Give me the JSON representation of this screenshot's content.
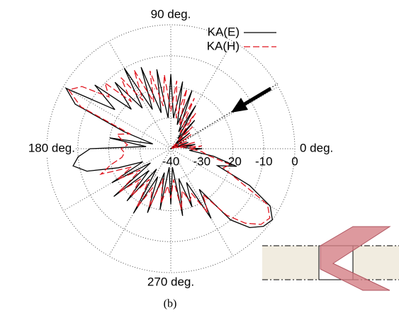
{
  "chart_data": {
    "type": "polar",
    "caption": "(b)",
    "rlim": [
      -40,
      0
    ],
    "rticks": [
      -40,
      -30,
      -20,
      -10,
      0
    ],
    "thetaticks": [
      {
        "value": 0,
        "label": "0 deg."
      },
      {
        "value": 30,
        "label": null
      },
      {
        "value": 60,
        "label": null
      },
      {
        "value": 90,
        "label": "90 deg."
      },
      {
        "value": 120,
        "label": null
      },
      {
        "value": 150,
        "label": null
      },
      {
        "value": 180,
        "label": "180 deg."
      },
      {
        "value": 210,
        "label": null
      },
      {
        "value": 240,
        "label": null
      },
      {
        "value": 270,
        "label": "270 deg."
      },
      {
        "value": 300,
        "label": null
      },
      {
        "value": 330,
        "label": null
      }
    ],
    "grid": true,
    "legend": "upper right",
    "theta": [
      0,
      5,
      10,
      15,
      20,
      25,
      30,
      35,
      40,
      45,
      50,
      55,
      60,
      65,
      70,
      75,
      80,
      85,
      90,
      95,
      100,
      105,
      110,
      115,
      120,
      125,
      130,
      135,
      140,
      145,
      150,
      155,
      160,
      165,
      170,
      175,
      180,
      185,
      190,
      195,
      200,
      205,
      210,
      215,
      220,
      225,
      230,
      235,
      240,
      245,
      250,
      255,
      260,
      265,
      270,
      275,
      280,
      285,
      290,
      295,
      300,
      305,
      310,
      315,
      320,
      325,
      330,
      335,
      340,
      345,
      350,
      355
    ],
    "series": [
      {
        "name": "KA(E)",
        "color": "#000000",
        "dash": "solid",
        "values": [
          -30,
          -36,
          -32,
          -38,
          -34,
          -40,
          -36,
          -40,
          -32,
          -38,
          -28,
          -36,
          -24,
          -34,
          -20,
          -32,
          -18,
          -30,
          -16,
          -30,
          -14,
          -28,
          -12,
          -26,
          -10,
          -24,
          -12,
          -22,
          -8,
          -18,
          -1,
          -6,
          -24,
          -34,
          -20,
          -32,
          -14,
          -10,
          -8,
          -12,
          -22,
          -30,
          -18,
          -32,
          -16,
          -30,
          -18,
          -32,
          -16,
          -30,
          -18,
          -32,
          -20,
          -34,
          -22,
          -34,
          -18,
          -30,
          -20,
          -28,
          -14,
          -24,
          -10,
          -4,
          -1,
          0,
          -3,
          -12,
          -24,
          -18,
          -26,
          -34
        ]
      },
      {
        "name": "KA(H)",
        "color": "#e0141e",
        "dash": "dashed",
        "values": [
          -34,
          -30,
          -38,
          -32,
          -40,
          -34,
          -38,
          -32,
          -40,
          -30,
          -36,
          -26,
          -34,
          -22,
          -32,
          -20,
          -30,
          -18,
          -28,
          -16,
          -26,
          -14,
          -24,
          -12,
          -22,
          -12,
          -20,
          -10,
          -14,
          -5,
          -2,
          -8,
          -26,
          -22,
          -24,
          -26,
          -24,
          -25,
          -24,
          -20,
          -16,
          -26,
          -20,
          -28,
          -18,
          -26,
          -20,
          -28,
          -18,
          -26,
          -20,
          -30,
          -22,
          -28,
          -24,
          -30,
          -20,
          -26,
          -22,
          -24,
          -16,
          -22,
          -12,
          -6,
          -2,
          -1,
          -4,
          -16,
          -22,
          -20,
          -28,
          -30
        ]
      }
    ]
  }
}
